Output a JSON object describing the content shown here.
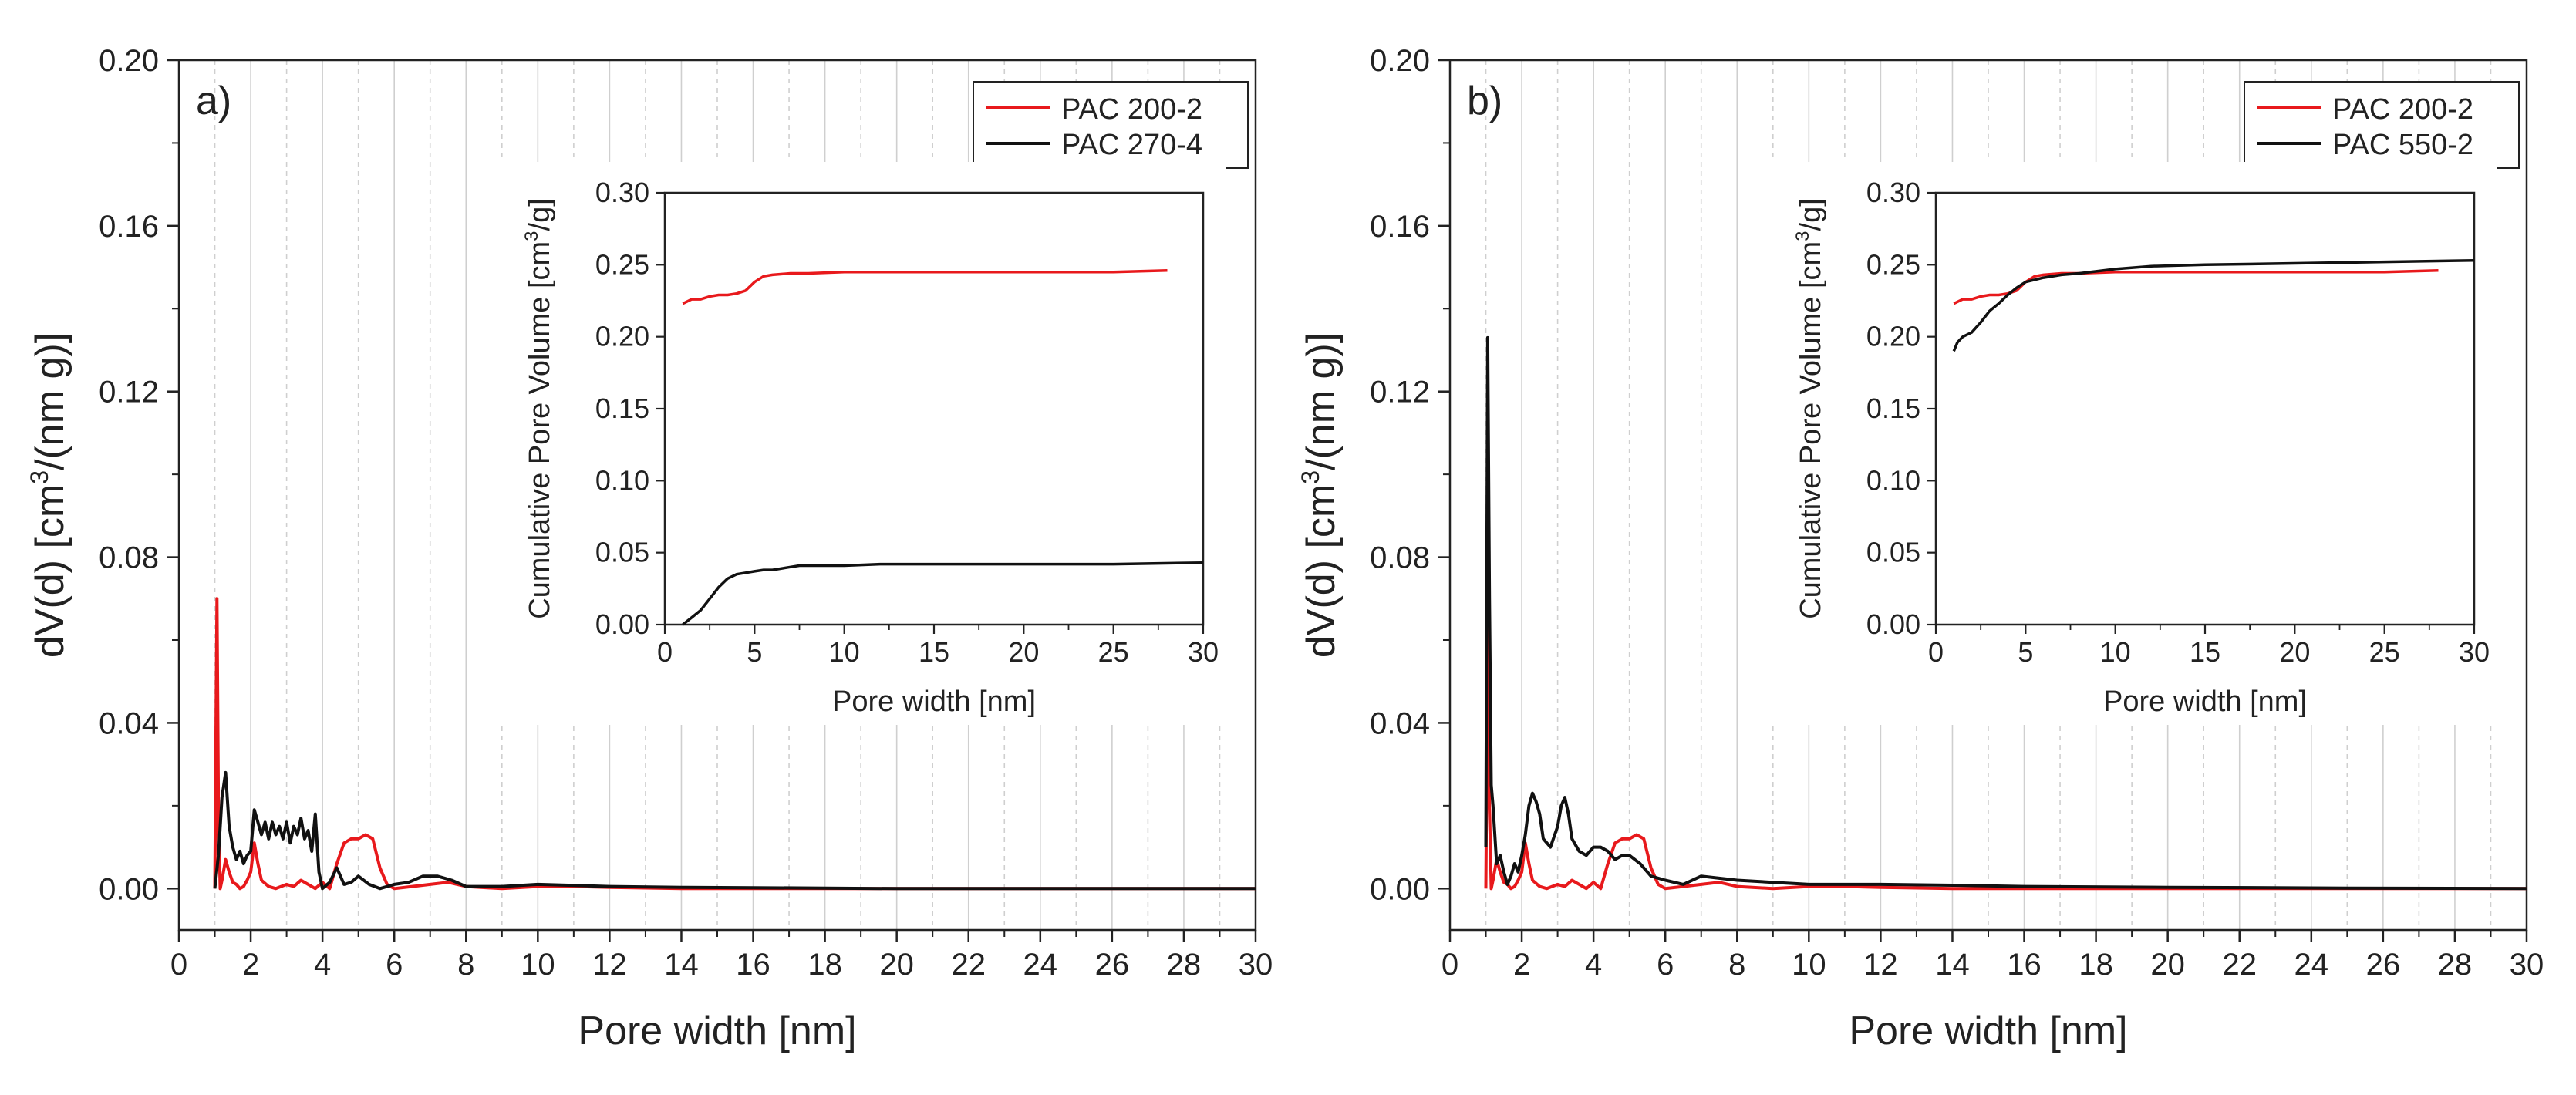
{
  "chart_data": [
    {
      "type": "line",
      "panel_label": "a)",
      "xlabel": "Pore width [nm]",
      "ylabel_main": "dV(d) [cm",
      "ylabel_sup": "3",
      "ylabel_rest": "/(nm g)]",
      "xlim": [
        0,
        30
      ],
      "ylim": [
        -0.01,
        0.2
      ],
      "xticks": [
        0,
        2,
        4,
        6,
        8,
        10,
        12,
        14,
        16,
        18,
        20,
        22,
        24,
        26,
        28,
        30
      ],
      "yticks": [
        0.0,
        0.04,
        0.08,
        0.12,
        0.16,
        0.2
      ],
      "ytick_labels": [
        "0.00",
        "0.04",
        "0.08",
        "0.12",
        "0.16",
        "0.20"
      ],
      "legend_position": "top-right",
      "series": [
        {
          "name": "PAC 200-2",
          "color": "#e8191c",
          "x": [
            1.0,
            1.06,
            1.1,
            1.15,
            1.2,
            1.3,
            1.4,
            1.5,
            1.6,
            1.7,
            1.8,
            1.9,
            2.0,
            2.1,
            2.2,
            2.3,
            2.5,
            2.7,
            3.0,
            3.2,
            3.4,
            3.6,
            3.8,
            4.0,
            4.2,
            4.4,
            4.6,
            4.8,
            5.0,
            5.2,
            5.4,
            5.6,
            5.8,
            6.0,
            6.5,
            7.0,
            7.5,
            8.0,
            9.0,
            10.0,
            11.0,
            12.0,
            14.0,
            16.0,
            20.0,
            25.0,
            30.0
          ],
          "values": [
            0.0,
            0.07,
            0.02,
            0.0,
            0.002,
            0.007,
            0.004,
            0.0015,
            0.001,
            0.0,
            0.0005,
            0.002,
            0.004,
            0.011,
            0.006,
            0.002,
            0.0005,
            0.0,
            0.001,
            0.0005,
            0.002,
            0.001,
            0.0,
            0.0015,
            0.0,
            0.006,
            0.011,
            0.012,
            0.012,
            0.013,
            0.012,
            0.005,
            0.001,
            0.0,
            0.0005,
            0.001,
            0.0015,
            0.0005,
            0.0,
            0.0005,
            0.0005,
            0.0003,
            0.0,
            0.0,
            0.0,
            0.0,
            0.0
          ]
        },
        {
          "name": "PAC 270-4",
          "color": "#111111",
          "x": [
            1.0,
            1.1,
            1.2,
            1.3,
            1.4,
            1.5,
            1.6,
            1.7,
            1.8,
            1.9,
            2.0,
            2.1,
            2.2,
            2.3,
            2.4,
            2.5,
            2.6,
            2.7,
            2.8,
            2.9,
            3.0,
            3.1,
            3.2,
            3.3,
            3.4,
            3.5,
            3.6,
            3.7,
            3.8,
            3.9,
            4.0,
            4.2,
            4.4,
            4.6,
            4.8,
            5.0,
            5.3,
            5.6,
            6.0,
            6.4,
            6.8,
            7.2,
            7.6,
            8.0,
            9.0,
            10.0,
            12.0,
            14.0,
            16.0,
            20.0,
            25.0,
            30.0
          ],
          "values": [
            0.0,
            0.008,
            0.022,
            0.028,
            0.015,
            0.01,
            0.007,
            0.009,
            0.006,
            0.008,
            0.009,
            0.019,
            0.016,
            0.013,
            0.016,
            0.012,
            0.016,
            0.013,
            0.015,
            0.012,
            0.016,
            0.011,
            0.015,
            0.013,
            0.017,
            0.012,
            0.014,
            0.009,
            0.018,
            0.004,
            0.0,
            0.0015,
            0.005,
            0.001,
            0.0015,
            0.003,
            0.001,
            0.0,
            0.001,
            0.0015,
            0.003,
            0.003,
            0.002,
            0.0005,
            0.0005,
            0.001,
            0.0005,
            0.0003,
            0.0002,
            0.0,
            0.0,
            0.0
          ]
        }
      ],
      "inset": {
        "xlabel": "Pore width [nm]",
        "ylabel_main": "Cumulative Pore Volume [cm",
        "ylabel_sup": "3",
        "ylabel_rest": "/g]",
        "xlim": [
          0,
          30
        ],
        "ylim": [
          0,
          0.3
        ],
        "xticks": [
          0,
          5,
          10,
          15,
          20,
          25,
          30
        ],
        "yticks": [
          0.0,
          0.05,
          0.1,
          0.15,
          0.2,
          0.25,
          0.3
        ],
        "ytick_labels": [
          "0.00",
          "0.05",
          "0.10",
          "0.15",
          "0.20",
          "0.25",
          "0.30"
        ],
        "series": [
          {
            "name": "PAC 200-2",
            "color": "#e8191c",
            "x": [
              1.0,
              1.5,
              2.0,
              2.5,
              3.0,
              3.5,
              4.0,
              4.5,
              5.0,
              5.5,
              6.0,
              7.0,
              8.0,
              10.0,
              15.0,
              20.0,
              25.0,
              28.0
            ],
            "values": [
              0.223,
              0.226,
              0.226,
              0.228,
              0.229,
              0.229,
              0.23,
              0.232,
              0.238,
              0.242,
              0.243,
              0.244,
              0.244,
              0.245,
              0.245,
              0.245,
              0.245,
              0.246
            ]
          },
          {
            "name": "PAC 270-4",
            "color": "#111111",
            "x": [
              1.0,
              1.5,
              2.0,
              2.5,
              3.0,
              3.5,
              4.0,
              4.5,
              5.0,
              5.5,
              6.0,
              7.0,
              7.5,
              8.0,
              10.0,
              12.0,
              15.0,
              20.0,
              25.0,
              30.0
            ],
            "values": [
              0.0,
              0.005,
              0.01,
              0.018,
              0.026,
              0.032,
              0.035,
              0.036,
              0.037,
              0.038,
              0.038,
              0.04,
              0.041,
              0.041,
              0.041,
              0.042,
              0.042,
              0.042,
              0.042,
              0.043
            ]
          }
        ]
      }
    },
    {
      "type": "line",
      "panel_label": "b)",
      "xlabel": "Pore width [nm]",
      "ylabel_main": "dV(d) [cm",
      "ylabel_sup": "3",
      "ylabel_rest": "/(nm g)]",
      "xlim": [
        0,
        30
      ],
      "ylim": [
        -0.01,
        0.2
      ],
      "xticks": [
        0,
        2,
        4,
        6,
        8,
        10,
        12,
        14,
        16,
        18,
        20,
        22,
        24,
        26,
        28,
        30
      ],
      "yticks": [
        0.0,
        0.04,
        0.08,
        0.12,
        0.16,
        0.2
      ],
      "ytick_labels": [
        "0.00",
        "0.04",
        "0.08",
        "0.12",
        "0.16",
        "0.20"
      ],
      "legend_position": "top-right",
      "series": [
        {
          "name": "PAC 200-2",
          "color": "#e8191c",
          "x": [
            1.0,
            1.06,
            1.1,
            1.15,
            1.2,
            1.3,
            1.4,
            1.5,
            1.6,
            1.7,
            1.8,
            1.9,
            2.0,
            2.1,
            2.2,
            2.3,
            2.5,
            2.7,
            3.0,
            3.2,
            3.4,
            3.6,
            3.8,
            4.0,
            4.2,
            4.4,
            4.6,
            4.8,
            5.0,
            5.2,
            5.4,
            5.6,
            5.8,
            6.0,
            6.5,
            7.0,
            7.5,
            8.0,
            9.0,
            10.0,
            11.0,
            12.0,
            14.0,
            16.0,
            20.0,
            25.0,
            30.0
          ],
          "values": [
            0.0,
            0.07,
            0.02,
            0.0,
            0.002,
            0.007,
            0.004,
            0.0015,
            0.001,
            0.0,
            0.0005,
            0.002,
            0.004,
            0.011,
            0.006,
            0.002,
            0.0005,
            0.0,
            0.001,
            0.0005,
            0.002,
            0.001,
            0.0,
            0.0015,
            0.0,
            0.006,
            0.011,
            0.012,
            0.012,
            0.013,
            0.012,
            0.005,
            0.001,
            0.0,
            0.0005,
            0.001,
            0.0015,
            0.0005,
            0.0,
            0.0005,
            0.0005,
            0.0003,
            0.0,
            0.0,
            0.0,
            0.0,
            0.0
          ]
        },
        {
          "name": "PAC 550-2",
          "color": "#111111",
          "x": [
            1.0,
            1.05,
            1.1,
            1.15,
            1.2,
            1.3,
            1.4,
            1.5,
            1.6,
            1.7,
            1.8,
            1.9,
            2.0,
            2.1,
            2.2,
            2.3,
            2.4,
            2.5,
            2.6,
            2.8,
            3.0,
            3.1,
            3.2,
            3.3,
            3.4,
            3.6,
            3.8,
            4.0,
            4.2,
            4.4,
            4.6,
            4.8,
            5.0,
            5.3,
            5.6,
            6.0,
            6.5,
            7.0,
            7.5,
            8.0,
            9.0,
            10.0,
            11.0,
            12.0,
            14.0,
            16.0,
            20.0,
            25.0,
            30.0
          ],
          "values": [
            0.01,
            0.133,
            0.07,
            0.025,
            0.02,
            0.006,
            0.008,
            0.004,
            0.001,
            0.003,
            0.006,
            0.004,
            0.008,
            0.013,
            0.02,
            0.023,
            0.021,
            0.018,
            0.012,
            0.01,
            0.015,
            0.02,
            0.022,
            0.018,
            0.012,
            0.009,
            0.008,
            0.01,
            0.01,
            0.009,
            0.007,
            0.008,
            0.008,
            0.006,
            0.003,
            0.002,
            0.001,
            0.003,
            0.0025,
            0.002,
            0.0015,
            0.001,
            0.001,
            0.001,
            0.0008,
            0.0005,
            0.0003,
            0.0001,
            0.0
          ]
        }
      ],
      "inset": {
        "xlabel": "Pore width [nm]",
        "ylabel_main": "Cumulative Pore Volume [cm",
        "ylabel_sup": "3",
        "ylabel_rest": "/g]",
        "xlim": [
          0,
          30
        ],
        "ylim": [
          0,
          0.3
        ],
        "xticks": [
          0,
          5,
          10,
          15,
          20,
          25,
          30
        ],
        "yticks": [
          0.0,
          0.05,
          0.1,
          0.15,
          0.2,
          0.25,
          0.3
        ],
        "ytick_labels": [
          "0.00",
          "0.05",
          "0.10",
          "0.15",
          "0.20",
          "0.25",
          "0.30"
        ],
        "series": [
          {
            "name": "PAC 200-2",
            "color": "#e8191c",
            "x": [
              1.0,
              1.5,
              2.0,
              2.5,
              3.0,
              3.5,
              4.0,
              4.5,
              5.0,
              5.5,
              6.0,
              7.0,
              8.0,
              10.0,
              15.0,
              20.0,
              25.0,
              28.0
            ],
            "values": [
              0.223,
              0.226,
              0.226,
              0.228,
              0.229,
              0.229,
              0.23,
              0.232,
              0.238,
              0.242,
              0.243,
              0.244,
              0.244,
              0.245,
              0.245,
              0.245,
              0.245,
              0.246
            ]
          },
          {
            "name": "PAC 550-2",
            "color": "#111111",
            "x": [
              1.0,
              1.2,
              1.5,
              2.0,
              2.5,
              3.0,
              3.5,
              4.0,
              4.5,
              5.0,
              6.0,
              7.0,
              8.0,
              10.0,
              12.0,
              15.0,
              20.0,
              25.0,
              30.0
            ],
            "values": [
              0.19,
              0.196,
              0.2,
              0.203,
              0.21,
              0.218,
              0.223,
              0.229,
              0.234,
              0.238,
              0.241,
              0.243,
              0.244,
              0.247,
              0.249,
              0.25,
              0.251,
              0.252,
              0.253
            ]
          }
        ]
      }
    }
  ]
}
